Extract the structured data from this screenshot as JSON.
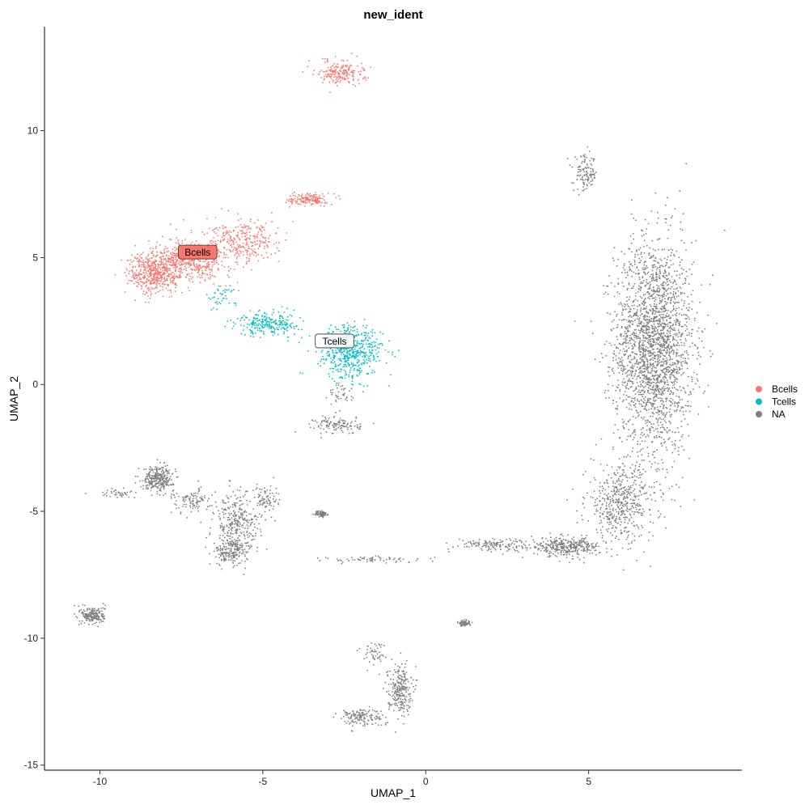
{
  "chart_data": {
    "type": "scatter",
    "title": "new_ident",
    "xlabel": "UMAP_1",
    "ylabel": "UMAP_2",
    "xlim": [
      -11.7,
      9.7
    ],
    "ylim": [
      -15.2,
      14.1
    ],
    "x_ticks": [
      -10,
      -5,
      0,
      5
    ],
    "y_ticks": [
      -15,
      -10,
      -5,
      0,
      5,
      10
    ],
    "grid": false,
    "legend_position": "right",
    "series": [
      {
        "name": "Bcells",
        "color": "#F8766D",
        "label": "Bcells",
        "label_position": [
          -7.0,
          5.2
        ],
        "clusters": [
          {
            "center": [
              -8.3,
              4.4
            ],
            "spread": [
              0.7,
              0.7
            ],
            "n": 500
          },
          {
            "center": [
              -7.2,
              4.9
            ],
            "spread": [
              0.9,
              0.7
            ],
            "n": 450
          },
          {
            "center": [
              -5.6,
              5.6
            ],
            "spread": [
              0.9,
              0.7
            ],
            "n": 300
          },
          {
            "center": [
              -3.6,
              7.3
            ],
            "spread": [
              0.5,
              0.2
            ],
            "n": 150
          },
          {
            "center": [
              -2.6,
              12.3
            ],
            "spread": [
              0.6,
              0.4
            ],
            "n": 200
          }
        ]
      },
      {
        "name": "Tcells",
        "color": "#00BFC4",
        "label": "Tcells",
        "label_position": [
          -2.8,
          1.7
        ],
        "clusters": [
          {
            "center": [
              -4.8,
              2.4
            ],
            "spread": [
              0.8,
              0.4
            ],
            "n": 250
          },
          {
            "center": [
              -2.3,
              1.3
            ],
            "spread": [
              0.8,
              0.9
            ],
            "n": 550
          },
          {
            "center": [
              -6.3,
              3.4
            ],
            "spread": [
              0.4,
              0.4
            ],
            "n": 40
          }
        ]
      },
      {
        "name": "NA",
        "color": "#7F7F7F",
        "clusters": [
          {
            "center": [
              7.0,
              1.5
            ],
            "spread": [
              1.0,
              3.5
            ],
            "n": 2400
          },
          {
            "center": [
              6.0,
              -4.7
            ],
            "spread": [
              0.9,
              1.2
            ],
            "n": 500
          },
          {
            "center": [
              4.9,
              8.3
            ],
            "spread": [
              0.3,
              0.6
            ],
            "n": 120
          },
          {
            "center": [
              4.3,
              -6.4
            ],
            "spread": [
              0.9,
              0.3
            ],
            "n": 350
          },
          {
            "center": [
              2.0,
              -6.3
            ],
            "spread": [
              0.9,
              0.2
            ],
            "n": 130
          },
          {
            "center": [
              -1.5,
              -6.9
            ],
            "spread": [
              1.4,
              0.1
            ],
            "n": 70
          },
          {
            "center": [
              -2.7,
              -1.6
            ],
            "spread": [
              0.6,
              0.3
            ],
            "n": 120
          },
          {
            "center": [
              -2.6,
              -0.4
            ],
            "spread": [
              0.3,
              0.4
            ],
            "n": 40
          },
          {
            "center": [
              -5.8,
              -5.6
            ],
            "spread": [
              0.6,
              1.1
            ],
            "n": 350
          },
          {
            "center": [
              -6.0,
              -6.6
            ],
            "spread": [
              0.4,
              0.4
            ],
            "n": 150
          },
          {
            "center": [
              -8.2,
              -3.7
            ],
            "spread": [
              0.4,
              0.4
            ],
            "n": 300
          },
          {
            "center": [
              -7.2,
              -4.6
            ],
            "spread": [
              0.5,
              0.4
            ],
            "n": 100
          },
          {
            "center": [
              -4.9,
              -4.5
            ],
            "spread": [
              0.3,
              0.5
            ],
            "n": 80
          },
          {
            "center": [
              -9.5,
              -4.3
            ],
            "spread": [
              0.5,
              0.15
            ],
            "n": 40
          },
          {
            "center": [
              -10.2,
              -9.1
            ],
            "spread": [
              0.3,
              0.3
            ],
            "n": 200
          },
          {
            "center": [
              -3.2,
              -5.1
            ],
            "spread": [
              0.15,
              0.1
            ],
            "n": 80
          },
          {
            "center": [
              1.2,
              -9.4
            ],
            "spread": [
              0.15,
              0.1
            ],
            "n": 70
          },
          {
            "center": [
              -0.8,
              -12.0
            ],
            "spread": [
              0.3,
              0.8
            ],
            "n": 250
          },
          {
            "center": [
              -2.0,
              -13.1
            ],
            "spread": [
              0.6,
              0.3
            ],
            "n": 150
          },
          {
            "center": [
              -1.6,
              -10.6
            ],
            "spread": [
              0.3,
              0.4
            ],
            "n": 50
          }
        ]
      }
    ]
  }
}
